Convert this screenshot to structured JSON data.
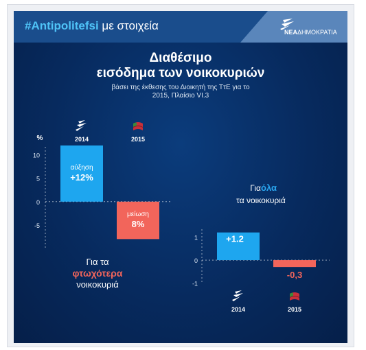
{
  "header": {
    "hashtag": "#Antipolitefsi",
    "hashtag_suffix": "με στοιχεία",
    "logo_text_bold": "ΝΕΑ",
    "logo_text": "ΔΗΜΟΚΡΑΤΙΑ"
  },
  "title": {
    "line1": "Διαθέσιμο",
    "line2": "εισόδημα των νοικοκυριών",
    "sub1": "βάσει της έκθεσης του Διοικητή της ΤτΕ για το",
    "sub2": "2015, Πλαίσιο VI.3"
  },
  "colors": {
    "background": "#072a5e",
    "banner": "#1a4d8c",
    "increase": "#1ea6ef",
    "decrease": "#f2655b",
    "accent_blue": "#2aa7f0",
    "accent_red": "#f2655b"
  },
  "chart_data": [
    {
      "type": "bar",
      "categories": [
        "2014",
        "2015"
      ],
      "category_icons": [
        "nd-logo-icon",
        "syriza-flag-icon"
      ],
      "values": [
        12,
        -8
      ],
      "ylabel": "%",
      "ylim": [
        -10,
        12
      ],
      "yticks": [
        10,
        5,
        0,
        -5
      ],
      "data_labels": [
        {
          "word": "αύξηση",
          "value": "+12%"
        },
        {
          "word": "μείωση",
          "value": "8%"
        }
      ],
      "caption": {
        "pre": "Για τα",
        "highlight": "φτωχότερα",
        "post": "νοικοκυριά"
      }
    },
    {
      "type": "bar",
      "categories": [
        "2014",
        "2015"
      ],
      "category_icons": [
        "nd-logo-icon",
        "syriza-flag-icon"
      ],
      "values": [
        1.2,
        -0.3
      ],
      "ylim": [
        -1.1,
        1.4
      ],
      "yticks": [
        1,
        0,
        -1
      ],
      "data_labels": [
        "+1.2",
        "-0,3"
      ],
      "caption": {
        "pre": "Για",
        "highlight": "όλα",
        "post": "τα νοικοκυριά"
      }
    }
  ]
}
